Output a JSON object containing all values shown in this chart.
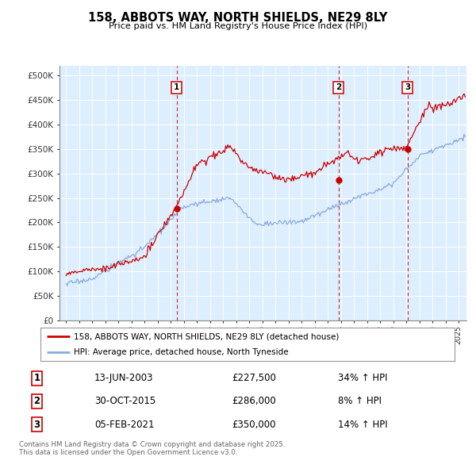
{
  "title": "158, ABBOTS WAY, NORTH SHIELDS, NE29 8LY",
  "subtitle": "Price paid vs. HM Land Registry's House Price Index (HPI)",
  "plot_bg_color": "#ddeeff",
  "ylim": [
    0,
    520000
  ],
  "yticks": [
    0,
    50000,
    100000,
    150000,
    200000,
    250000,
    300000,
    350000,
    400000,
    450000,
    500000
  ],
  "xlim_start": 1994.5,
  "xlim_end": 2025.6,
  "red_line_color": "#cc0000",
  "blue_line_color": "#88aadd",
  "sale_marker_color": "#cc0000",
  "sale_vline_color": "#cc0000",
  "legend_label_red": "158, ABBOTS WAY, NORTH SHIELDS, NE29 8LY (detached house)",
  "legend_label_blue": "HPI: Average price, detached house, North Tyneside",
  "sales": [
    {
      "num": 1,
      "date_label": "13-JUN-2003",
      "price": 227500,
      "pct": "34% ↑ HPI",
      "x_year": 2003.45
    },
    {
      "num": 2,
      "date_label": "30-OCT-2015",
      "price": 286000,
      "pct": "8% ↑ HPI",
      "x_year": 2015.83
    },
    {
      "num": 3,
      "date_label": "05-FEB-2021",
      "price": 350000,
      "pct": "14% ↑ HPI",
      "x_year": 2021.1
    }
  ],
  "footer_text": "Contains HM Land Registry data © Crown copyright and database right 2025.\nThis data is licensed under the Open Government Licence v3.0.",
  "table_rows": [
    [
      "1",
      "13-JUN-2003",
      "£227,500",
      "34% ↑ HPI"
    ],
    [
      "2",
      "30-OCT-2015",
      "£286,000",
      "8% ↑ HPI"
    ],
    [
      "3",
      "05-FEB-2021",
      "£350,000",
      "14% ↑ HPI"
    ]
  ]
}
